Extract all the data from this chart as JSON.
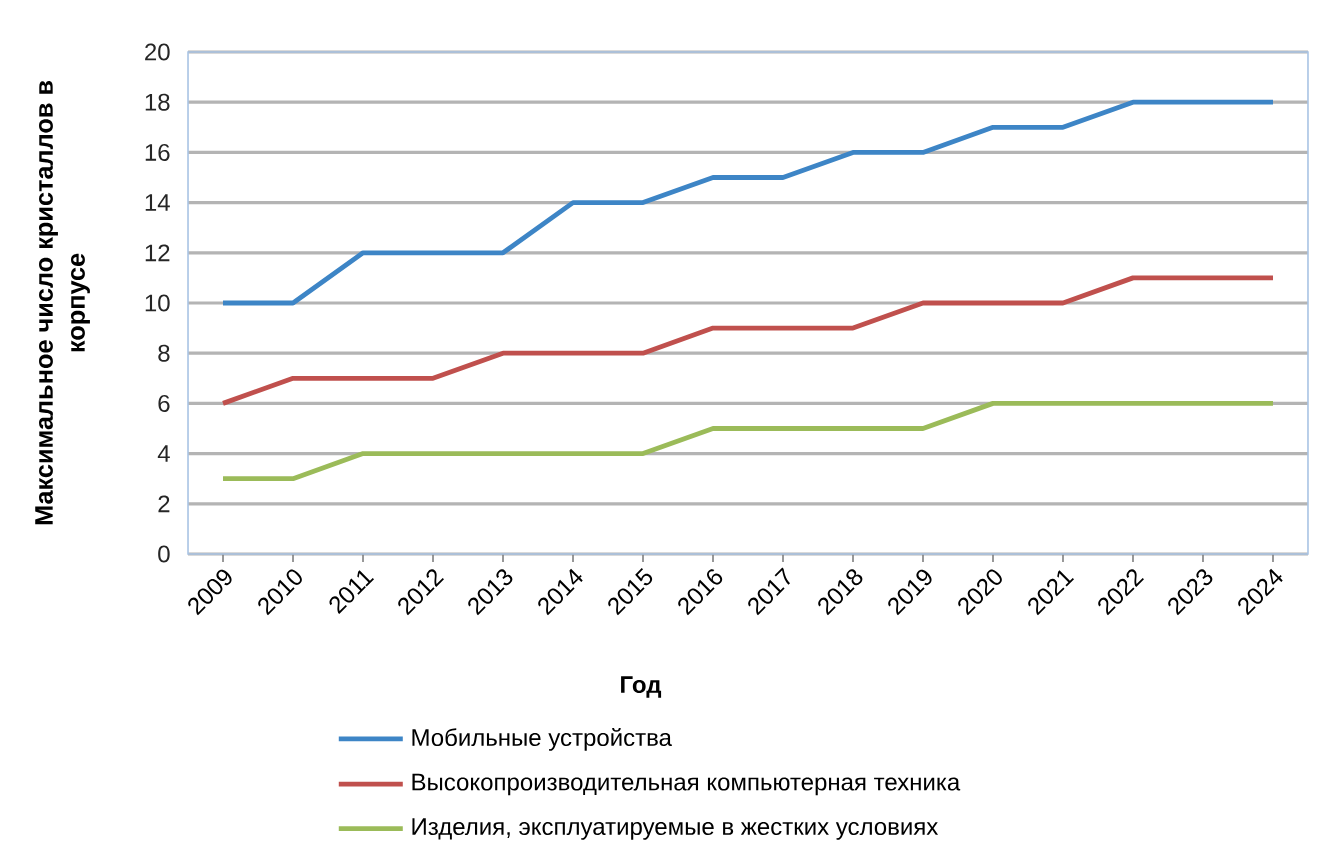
{
  "chart_data": {
    "type": "line",
    "xlabel": "Год",
    "ylabel": "Максимальное число кристаллов в корпусе",
    "categories": [
      "2009",
      "2010",
      "2011",
      "2012",
      "2013",
      "2014",
      "2015",
      "2016",
      "2017",
      "2018",
      "2019",
      "2020",
      "2021",
      "2022",
      "2023",
      "2024"
    ],
    "series": [
      {
        "name": "Мобильные устройства",
        "color": "#3d85c6",
        "values": [
          10,
          10,
          12,
          12,
          12,
          14,
          14,
          15,
          15,
          16,
          16,
          17,
          17,
          18,
          18,
          18
        ]
      },
      {
        "name": "Высокопроизводительная компьютерная техника",
        "color": "#c0504d",
        "values": [
          6,
          7,
          7,
          7,
          8,
          8,
          8,
          9,
          9,
          9,
          10,
          10,
          10,
          11,
          11,
          11
        ]
      },
      {
        "name": "Изделия, эксплуатируемые в жестких условиях",
        "color": "#9bbb59",
        "values": [
          3,
          3,
          4,
          4,
          4,
          4,
          4,
          5,
          5,
          5,
          5,
          6,
          6,
          6,
          6,
          6
        ]
      }
    ],
    "ylim": [
      0,
      20
    ],
    "yticks": [
      0,
      2,
      4,
      6,
      8,
      10,
      12,
      14,
      16,
      18,
      20
    ],
    "grid": "y",
    "legend": "bottom",
    "marker": "none",
    "line_style": "solid"
  }
}
